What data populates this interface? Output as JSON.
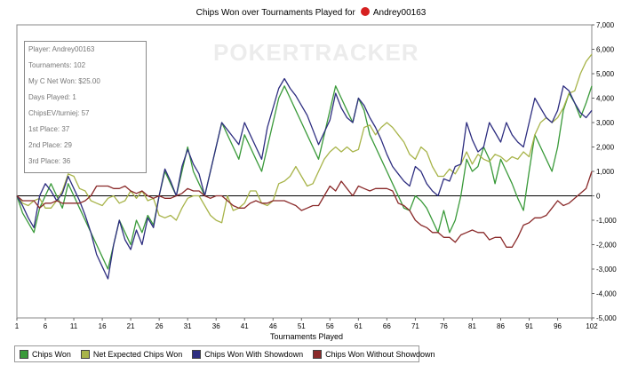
{
  "header": {
    "title": "Chips Won over Tournaments Played for",
    "player": "Andrey00163"
  },
  "watermark": "POKERTRACKER",
  "infobox": [
    "Player: Andrey00163",
    "Tournaments: 102",
    "My C Net Won: $25.00",
    "Days Played: 1",
    "ChipsEV/turniej: 57",
    "1st Place: 37",
    "2nd Place: 29",
    "3rd Place: 36"
  ],
  "chart_data": {
    "type": "line",
    "title": "Chips Won over Tournaments Played for Andrey00163",
    "xlabel": "Tournaments Played",
    "ylabel": "",
    "xlim": [
      1,
      102
    ],
    "ylim": [
      -5000,
      7000
    ],
    "x_ticks": [
      1,
      6,
      11,
      16,
      21,
      26,
      31,
      36,
      41,
      46,
      51,
      56,
      61,
      66,
      71,
      76,
      81,
      86,
      91,
      96,
      102
    ],
    "y_ticks": [
      -5000,
      -4000,
      -3000,
      -2000,
      -1000,
      0,
      1000,
      2000,
      3000,
      4000,
      5000,
      6000,
      7000
    ],
    "y_tick_labels": [
      "-5,000",
      "-4,000",
      "-3,000",
      "-2,000",
      "-1,000",
      "0",
      "1,000",
      "2,000",
      "3,000",
      "4,000",
      "5,000",
      "6,000",
      "7,000"
    ],
    "legend_position": "bottom-left",
    "grid": false,
    "series": [
      {
        "name": "Chips Won",
        "color": "#3a9a3a",
        "values": [
          0,
          -700,
          -1100,
          -1500,
          -500,
          0,
          500,
          0,
          -500,
          500,
          0,
          -500,
          -1000,
          -1500,
          -2000,
          -2500,
          -3000,
          -2000,
          -1000,
          -1500,
          -2000,
          -1000,
          -1500,
          -800,
          -1200,
          0,
          1000,
          500,
          0,
          1000,
          2000,
          1000,
          500,
          0,
          1000,
          2000,
          3000,
          2500,
          2000,
          1500,
          2500,
          2000,
          1500,
          1000,
          2000,
          3000,
          4000,
          4500,
          4000,
          3500,
          3000,
          2500,
          2000,
          1500,
          2500,
          3500,
          4500,
          4000,
          3500,
          3000,
          4000,
          3500,
          2500,
          2000,
          1500,
          1000,
          500,
          0,
          -500,
          -600,
          0,
          -200,
          -500,
          -1000,
          -1500,
          -600,
          -1500,
          -1000,
          0,
          1500,
          1000,
          1200,
          2000,
          1500,
          500,
          1500,
          1000,
          500,
          -100,
          -600,
          1000,
          2500,
          2000,
          1500,
          1000,
          2000,
          3500,
          4200,
          3800,
          3200,
          3800,
          4500
        ]
      },
      {
        "name": "Net Expected Chips Won",
        "color": "#a8b44a",
        "values": [
          0,
          -300,
          -400,
          -200,
          -100,
          -500,
          -500,
          -200,
          200,
          900,
          800,
          300,
          200,
          -200,
          -300,
          -400,
          -100,
          0,
          -300,
          -200,
          200,
          -100,
          200,
          -200,
          -100,
          -800,
          -900,
          -800,
          -1000,
          -500,
          -100,
          0,
          0,
          -400,
          -800,
          -1000,
          -1100,
          0,
          -600,
          -500,
          -300,
          200,
          200,
          -300,
          -400,
          -200,
          500,
          600,
          800,
          1200,
          800,
          400,
          500,
          1000,
          1500,
          1800,
          2000,
          1800,
          2000,
          1800,
          1900,
          2800,
          2900,
          2500,
          2800,
          3000,
          2800,
          2500,
          2200,
          1700,
          1500,
          2000,
          1800,
          1200,
          800,
          800,
          1100,
          900,
          1300,
          1800,
          1300,
          1700,
          1500,
          1400,
          1700,
          1600,
          1400,
          1600,
          1500,
          1800,
          1600,
          2500,
          3000,
          3200,
          3000,
          3200,
          3600,
          4200,
          4300,
          5000,
          5500,
          5800
        ]
      },
      {
        "name": "Chips Won With Showdown",
        "color": "#2e2e80",
        "values": [
          0,
          -400,
          -900,
          -1300,
          0,
          500,
          200,
          -200,
          100,
          800,
          300,
          -200,
          -800,
          -1500,
          -2400,
          -2900,
          -3400,
          -2000,
          -1000,
          -1800,
          -2200,
          -1400,
          -2000,
          -900,
          -1300,
          0,
          1100,
          600,
          0,
          1200,
          1900,
          1300,
          900,
          0,
          1000,
          2000,
          3000,
          2700,
          2400,
          2100,
          3000,
          2500,
          2000,
          1500,
          2800,
          3600,
          4400,
          4800,
          4400,
          4100,
          3700,
          3300,
          2700,
          2100,
          2600,
          3100,
          4200,
          3600,
          3200,
          3000,
          4000,
          3700,
          3200,
          2800,
          2300,
          1700,
          1200,
          900,
          600,
          400,
          1200,
          1000,
          500,
          200,
          0,
          700,
          600,
          1200,
          1300,
          3000,
          2300,
          1800,
          2000,
          3000,
          2600,
          2200,
          3000,
          2500,
          2200,
          2000,
          3000,
          4000,
          3600,
          3200,
          3000,
          3500,
          4500,
          4300,
          3800,
          3400,
          3200,
          3500
        ]
      },
      {
        "name": "Chips Won Without Showdown",
        "color": "#8a2a2a",
        "values": [
          0,
          -200,
          -200,
          -200,
          -500,
          -300,
          -300,
          -200,
          -300,
          -300,
          -300,
          -300,
          -200,
          0,
          400,
          400,
          400,
          300,
          300,
          400,
          200,
          100,
          200,
          0,
          -100,
          0,
          -100,
          -100,
          0,
          100,
          300,
          200,
          200,
          0,
          -100,
          0,
          0,
          -200,
          -400,
          -500,
          -500,
          -300,
          -200,
          -300,
          -300,
          -200,
          -200,
          -200,
          -300,
          -400,
          -600,
          -500,
          -400,
          -400,
          0,
          400,
          200,
          600,
          300,
          0,
          400,
          300,
          200,
          300,
          300,
          300,
          200,
          -300,
          -400,
          -600,
          -1000,
          -1200,
          -1300,
          -1500,
          -1500,
          -1700,
          -1700,
          -1900,
          -1600,
          -1500,
          -1400,
          -1500,
          -1500,
          -1800,
          -1700,
          -1700,
          -2100,
          -2100,
          -1700,
          -1200,
          -1100,
          -900,
          -900,
          -800,
          -500,
          -200,
          -400,
          -300,
          -100,
          100,
          300,
          1000
        ]
      }
    ]
  }
}
